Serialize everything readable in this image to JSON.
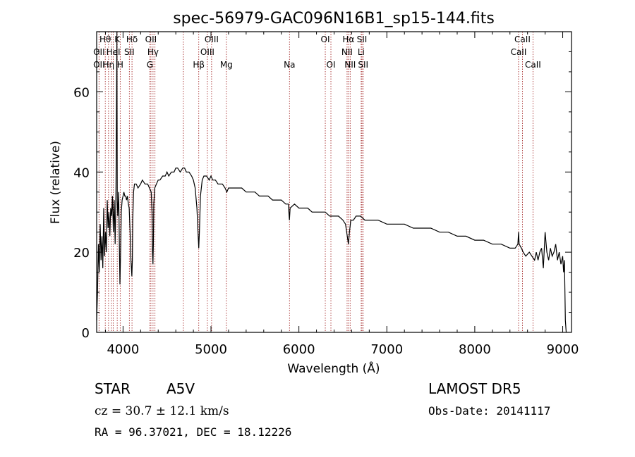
{
  "chart_data": {
    "type": "line",
    "title": "spec-56979-GAC096N16B1_sp15-144.fits",
    "xlabel": "Wavelength (Å)",
    "ylabel": "Flux (relative)",
    "xlim": [
      3700,
      9100
    ],
    "ylim": [
      0,
      75
    ],
    "x_ticks": [
      4000,
      5000,
      6000,
      7000,
      8000,
      9000
    ],
    "y_ticks": [
      0,
      20,
      40,
      60
    ],
    "grid": false,
    "series": [
      {
        "points": [
          [
            3700,
            3
          ],
          [
            3710,
            10
          ],
          [
            3720,
            22
          ],
          [
            3730,
            15
          ],
          [
            3740,
            27
          ],
          [
            3750,
            18
          ],
          [
            3760,
            24
          ],
          [
            3770,
            16
          ],
          [
            3780,
            31
          ],
          [
            3790,
            19
          ],
          [
            3800,
            25
          ],
          [
            3810,
            20
          ],
          [
            3820,
            33
          ],
          [
            3830,
            26
          ],
          [
            3840,
            30
          ],
          [
            3850,
            24
          ],
          [
            3860,
            31
          ],
          [
            3870,
            29
          ],
          [
            3880,
            34
          ],
          [
            3890,
            25
          ],
          [
            3900,
            33
          ],
          [
            3910,
            22
          ],
          [
            3920,
            36
          ],
          [
            3930,
            78
          ],
          [
            3934,
            33
          ],
          [
            3940,
            29
          ],
          [
            3950,
            35
          ],
          [
            3960,
            19
          ],
          [
            3965,
            12
          ],
          [
            3970,
            18
          ],
          [
            3980,
            30
          ],
          [
            3990,
            33
          ],
          [
            4000,
            34
          ],
          [
            4010,
            35
          ],
          [
            4020,
            34
          ],
          [
            4030,
            34
          ],
          [
            4040,
            33
          ],
          [
            4050,
            34
          ],
          [
            4060,
            32
          ],
          [
            4070,
            31
          ],
          [
            4080,
            25
          ],
          [
            4090,
            18
          ],
          [
            4100,
            14
          ],
          [
            4106,
            18
          ],
          [
            4110,
            28
          ],
          [
            4120,
            35
          ],
          [
            4130,
            37
          ],
          [
            4150,
            37
          ],
          [
            4170,
            36
          ],
          [
            4200,
            37
          ],
          [
            4220,
            38
          ],
          [
            4250,
            37
          ],
          [
            4280,
            37
          ],
          [
            4300,
            36
          ],
          [
            4320,
            35
          ],
          [
            4330,
            30
          ],
          [
            4335,
            20
          ],
          [
            4340,
            17
          ],
          [
            4345,
            22
          ],
          [
            4350,
            32
          ],
          [
            4360,
            36
          ],
          [
            4380,
            37
          ],
          [
            4400,
            38
          ],
          [
            4420,
            38
          ],
          [
            4450,
            39
          ],
          [
            4480,
            39
          ],
          [
            4500,
            40
          ],
          [
            4520,
            39
          ],
          [
            4550,
            40
          ],
          [
            4580,
            40
          ],
          [
            4600,
            41
          ],
          [
            4620,
            41
          ],
          [
            4650,
            40
          ],
          [
            4680,
            41
          ],
          [
            4700,
            41
          ],
          [
            4720,
            40
          ],
          [
            4750,
            40
          ],
          [
            4780,
            39
          ],
          [
            4800,
            38
          ],
          [
            4820,
            36
          ],
          [
            4840,
            31
          ],
          [
            4855,
            24
          ],
          [
            4861,
            21
          ],
          [
            4868,
            25
          ],
          [
            4880,
            34
          ],
          [
            4900,
            38
          ],
          [
            4920,
            39
          ],
          [
            4950,
            39
          ],
          [
            4980,
            38
          ],
          [
            5000,
            39
          ],
          [
            5020,
            38
          ],
          [
            5050,
            38
          ],
          [
            5080,
            37
          ],
          [
            5100,
            37
          ],
          [
            5130,
            37
          ],
          [
            5160,
            36
          ],
          [
            5180,
            35
          ],
          [
            5200,
            36
          ],
          [
            5250,
            36
          ],
          [
            5300,
            36
          ],
          [
            5350,
            36
          ],
          [
            5400,
            35
          ],
          [
            5450,
            35
          ],
          [
            5500,
            35
          ],
          [
            5550,
            34
          ],
          [
            5600,
            34
          ],
          [
            5650,
            34
          ],
          [
            5700,
            33
          ],
          [
            5750,
            33
          ],
          [
            5800,
            33
          ],
          [
            5850,
            32
          ],
          [
            5880,
            32
          ],
          [
            5892,
            28
          ],
          [
            5900,
            31
          ],
          [
            5950,
            32
          ],
          [
            6000,
            31
          ],
          [
            6050,
            31
          ],
          [
            6100,
            31
          ],
          [
            6150,
            30
          ],
          [
            6200,
            30
          ],
          [
            6250,
            30
          ],
          [
            6300,
            30
          ],
          [
            6350,
            29
          ],
          [
            6400,
            29
          ],
          [
            6450,
            29
          ],
          [
            6500,
            28
          ],
          [
            6530,
            27
          ],
          [
            6550,
            24
          ],
          [
            6563,
            22
          ],
          [
            6575,
            25
          ],
          [
            6590,
            28
          ],
          [
            6620,
            28
          ],
          [
            6650,
            29
          ],
          [
            6700,
            29
          ],
          [
            6750,
            28
          ],
          [
            6800,
            28
          ],
          [
            6850,
            28
          ],
          [
            6900,
            28
          ],
          [
            7000,
            27
          ],
          [
            7100,
            27
          ],
          [
            7200,
            27
          ],
          [
            7300,
            26
          ],
          [
            7400,
            26
          ],
          [
            7500,
            26
          ],
          [
            7600,
            25
          ],
          [
            7700,
            25
          ],
          [
            7800,
            24
          ],
          [
            7900,
            24
          ],
          [
            8000,
            23
          ],
          [
            8100,
            23
          ],
          [
            8200,
            22
          ],
          [
            8300,
            22
          ],
          [
            8400,
            21
          ],
          [
            8460,
            21
          ],
          [
            8490,
            22
          ],
          [
            8498,
            25
          ],
          [
            8505,
            22
          ],
          [
            8530,
            21
          ],
          [
            8550,
            20
          ],
          [
            8580,
            19
          ],
          [
            8620,
            20
          ],
          [
            8650,
            19
          ],
          [
            8680,
            18
          ],
          [
            8700,
            20
          ],
          [
            8720,
            18
          ],
          [
            8740,
            20
          ],
          [
            8760,
            21
          ],
          [
            8780,
            16
          ],
          [
            8800,
            25
          ],
          [
            8820,
            20
          ],
          [
            8840,
            18
          ],
          [
            8860,
            21
          ],
          [
            8880,
            19
          ],
          [
            8900,
            20
          ],
          [
            8920,
            22
          ],
          [
            8940,
            18
          ],
          [
            8960,
            20
          ],
          [
            8980,
            17
          ],
          [
            9000,
            19
          ],
          [
            9010,
            15
          ],
          [
            9020,
            18
          ],
          [
            9030,
            3
          ],
          [
            9040,
            0
          ]
        ]
      }
    ],
    "line_marks": [
      {
        "name": "Hθ",
        "wl": 3798,
        "row": 0
      },
      {
        "name": "K",
        "wl": 3934,
        "row": 0
      },
      {
        "name": "Hδ",
        "wl": 4102,
        "row": 0
      },
      {
        "name": "OII",
        "wl": 4317,
        "row": 0
      },
      {
        "name": "OIII",
        "wl": 5007,
        "row": 0
      },
      {
        "name": "OI",
        "wl": 6300,
        "row": 0
      },
      {
        "name": "Hα",
        "wl": 6563,
        "row": 0
      },
      {
        "name": "SII",
        "wl": 6717,
        "row": 0
      },
      {
        "name": "CaII",
        "wl": 8542,
        "row": 0
      },
      {
        "name": "OII",
        "wl": 3727,
        "row": 1
      },
      {
        "name": "HeI",
        "wl": 3889,
        "row": 1
      },
      {
        "name": "SII",
        "wl": 4072,
        "row": 1
      },
      {
        "name": "Hγ",
        "wl": 4341,
        "row": 1
      },
      {
        "name": "OIII",
        "wl": 4959,
        "row": 1
      },
      {
        "name": "NII",
        "wl": 6548,
        "row": 1
      },
      {
        "name": "Li",
        "wl": 6708,
        "row": 1
      },
      {
        "name": "CaII",
        "wl": 8498,
        "row": 1
      },
      {
        "name": "OII",
        "wl": 3727,
        "row": 2
      },
      {
        "name": "Hη",
        "wl": 3835,
        "row": 2
      },
      {
        "name": "H",
        "wl": 3968,
        "row": 2
      },
      {
        "name": "G",
        "wl": 4305,
        "row": 2
      },
      {
        "name": "Hβ",
        "wl": 4861,
        "row": 2
      },
      {
        "name": "Mg",
        "wl": 5175,
        "row": 2
      },
      {
        "name": "Na",
        "wl": 5893,
        "row": 2
      },
      {
        "name": "OI",
        "wl": 6364,
        "row": 2
      },
      {
        "name": "NII",
        "wl": 6583,
        "row": 2
      },
      {
        "name": "SII",
        "wl": 6731,
        "row": 2
      },
      {
        "name": "CaII",
        "wl": 8662,
        "row": 2
      }
    ],
    "extra_line_wl": [
      3869,
      4363,
      4686
    ]
  },
  "info": {
    "class": "STAR",
    "subclass": "A5V",
    "survey": "LAMOST DR5",
    "cz": "cz = 30.7 ± 12.1 km/s",
    "obs_date": "Obs-Date: 20141117",
    "coords": "RA =  96.37021, DEC =  18.12226"
  },
  "colors": {
    "line_mark": "#a52a2a",
    "spectrum": "#000000",
    "axes": "#000000"
  }
}
